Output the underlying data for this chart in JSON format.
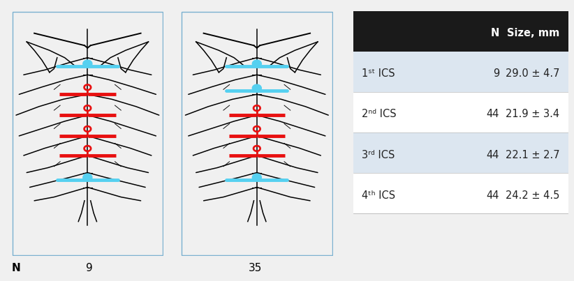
{
  "table_header_bg": "#1a1a1a",
  "table_header_fg": "#ffffff",
  "table_row_bg_alt": "#dce6f0",
  "table_row_bg_white": "#ffffff",
  "table_fg": "#222222",
  "table_header": [
    "",
    "N",
    "Size, mm"
  ],
  "table_rows": [
    [
      "1ˢᵗ ICS",
      "9",
      "29.0 ± 4.7"
    ],
    [
      "2ⁿᵈ ICS",
      "44",
      "21.9 ± 3.4"
    ],
    [
      "3ʳᵈ ICS",
      "44",
      "22.1 ± 2.7"
    ],
    [
      "4ᵗʰ ICS",
      "44",
      "24.2 ± 4.5"
    ]
  ],
  "n_labels": [
    "9",
    "35"
  ],
  "cyan_color": "#55d0f0",
  "red_color": "#e81010",
  "bg_color": "#f0f0f0",
  "border_color": "#7ab0d0",
  "fig_bg": "#f0f0f0",
  "panel_bg": "white"
}
